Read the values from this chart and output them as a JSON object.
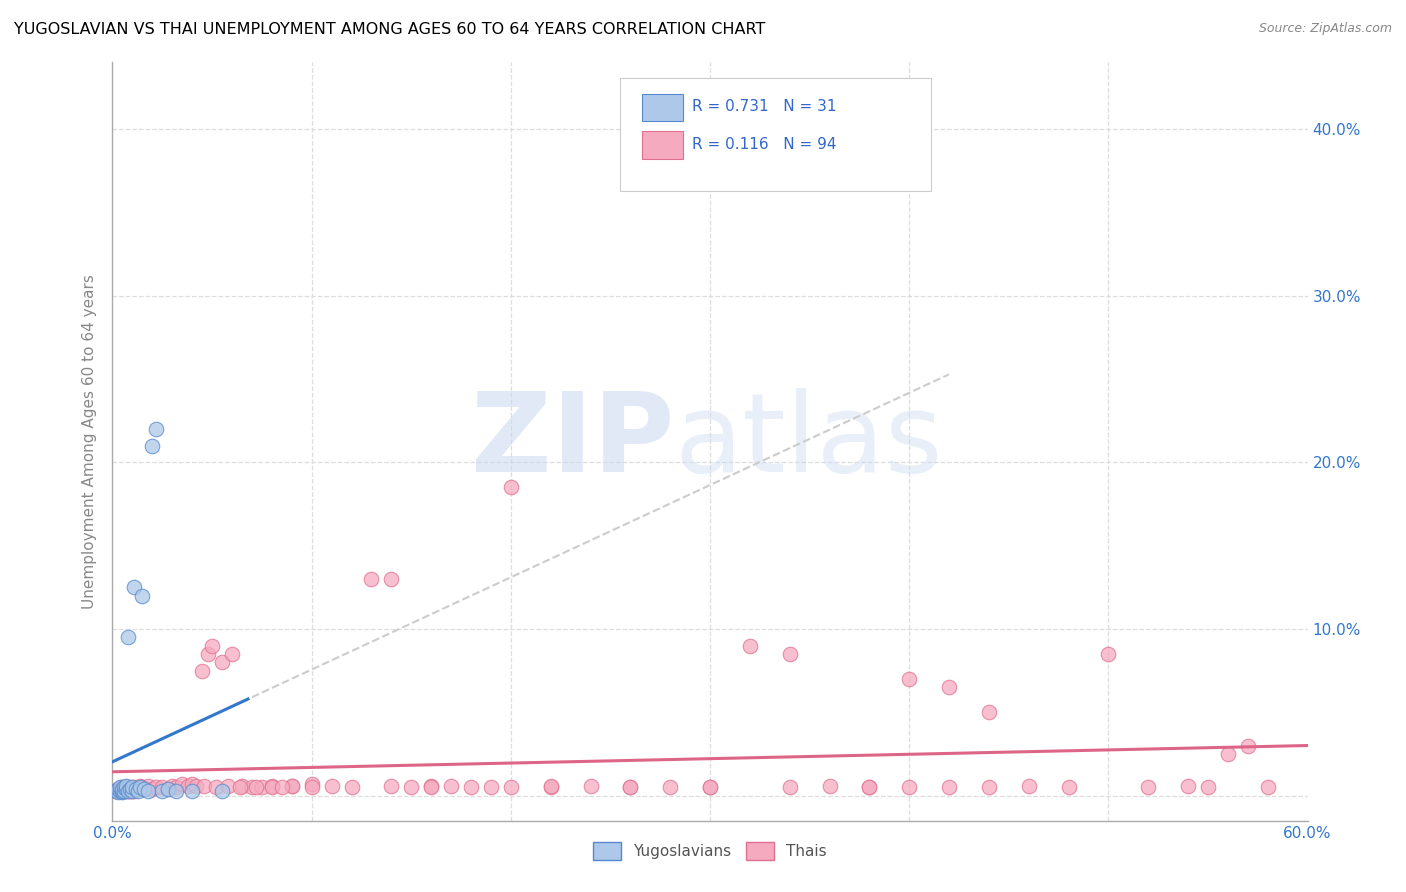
{
  "title": "YUGOSLAVIAN VS THAI UNEMPLOYMENT AMONG AGES 60 TO 64 YEARS CORRELATION CHART",
  "source": "Source: ZipAtlas.com",
  "ylabel": "Unemployment Among Ages 60 to 64 years",
  "xlim": [
    0.0,
    0.6
  ],
  "ylim": [
    -0.015,
    0.44
  ],
  "x_ticks": [
    0.0,
    0.1,
    0.2,
    0.3,
    0.4,
    0.5,
    0.6
  ],
  "y_ticks": [
    0.0,
    0.1,
    0.2,
    0.3,
    0.4
  ],
  "y_tick_labels": [
    "",
    "10.0%",
    "20.0%",
    "30.0%",
    "40.0%"
  ],
  "yugo_R": 0.731,
  "yugo_N": 31,
  "thai_R": 0.116,
  "thai_N": 94,
  "yugo_fill_color": "#adc8e8",
  "yugo_edge_color": "#5588cc",
  "thai_fill_color": "#f5aabf",
  "thai_edge_color": "#e07090",
  "yugo_line_color": "#3377cc",
  "thai_line_color": "#dd6688",
  "dash_color": "#cccccc",
  "grid_color": "#dddddd",
  "yugo_x": [
    0.002,
    0.003,
    0.003,
    0.004,
    0.004,
    0.005,
    0.005,
    0.005,
    0.006,
    0.006,
    0.007,
    0.007,
    0.008,
    0.008,
    0.009,
    0.01,
    0.01,
    0.011,
    0.012,
    0.013,
    0.014,
    0.015,
    0.016,
    0.018,
    0.02,
    0.022,
    0.025,
    0.028,
    0.032,
    0.04,
    0.055
  ],
  "yugo_y": [
    0.003,
    0.002,
    0.004,
    0.003,
    0.005,
    0.002,
    0.003,
    0.004,
    0.003,
    0.005,
    0.004,
    0.006,
    0.003,
    0.095,
    0.004,
    0.003,
    0.005,
    0.125,
    0.004,
    0.003,
    0.005,
    0.12,
    0.004,
    0.003,
    0.21,
    0.22,
    0.003,
    0.004,
    0.003,
    0.003,
    0.003
  ],
  "thai_x": [
    0.002,
    0.003,
    0.004,
    0.005,
    0.005,
    0.006,
    0.006,
    0.007,
    0.007,
    0.008,
    0.008,
    0.009,
    0.009,
    0.01,
    0.01,
    0.011,
    0.012,
    0.013,
    0.014,
    0.015,
    0.016,
    0.018,
    0.02,
    0.022,
    0.025,
    0.028,
    0.03,
    0.032,
    0.035,
    0.038,
    0.04,
    0.042,
    0.045,
    0.048,
    0.05,
    0.055,
    0.06,
    0.065,
    0.07,
    0.075,
    0.08,
    0.09,
    0.1,
    0.11,
    0.12,
    0.13,
    0.14,
    0.15,
    0.16,
    0.17,
    0.18,
    0.19,
    0.2,
    0.22,
    0.24,
    0.26,
    0.28,
    0.3,
    0.32,
    0.34,
    0.36,
    0.38,
    0.4,
    0.42,
    0.44,
    0.46,
    0.48,
    0.5,
    0.52,
    0.54,
    0.55,
    0.56,
    0.57,
    0.58,
    0.4,
    0.42,
    0.44,
    0.08,
    0.09,
    0.1,
    0.14,
    0.16,
    0.2,
    0.22,
    0.26,
    0.3,
    0.34,
    0.38,
    0.046,
    0.052,
    0.058,
    0.064,
    0.072,
    0.085
  ],
  "thai_y": [
    0.003,
    0.004,
    0.003,
    0.005,
    0.003,
    0.004,
    0.003,
    0.003,
    0.004,
    0.005,
    0.003,
    0.004,
    0.003,
    0.005,
    0.003,
    0.003,
    0.004,
    0.005,
    0.006,
    0.005,
    0.004,
    0.006,
    0.004,
    0.005,
    0.005,
    0.004,
    0.006,
    0.005,
    0.007,
    0.006,
    0.007,
    0.006,
    0.075,
    0.085,
    0.09,
    0.08,
    0.085,
    0.006,
    0.005,
    0.005,
    0.006,
    0.006,
    0.007,
    0.006,
    0.005,
    0.13,
    0.13,
    0.005,
    0.006,
    0.006,
    0.005,
    0.005,
    0.185,
    0.005,
    0.006,
    0.005,
    0.005,
    0.005,
    0.09,
    0.085,
    0.006,
    0.005,
    0.005,
    0.005,
    0.005,
    0.006,
    0.005,
    0.085,
    0.005,
    0.006,
    0.005,
    0.025,
    0.03,
    0.005,
    0.07,
    0.065,
    0.05,
    0.005,
    0.006,
    0.005,
    0.006,
    0.005,
    0.005,
    0.006,
    0.005,
    0.005,
    0.005,
    0.005,
    0.006,
    0.005,
    0.006,
    0.005,
    0.005,
    0.005
  ]
}
